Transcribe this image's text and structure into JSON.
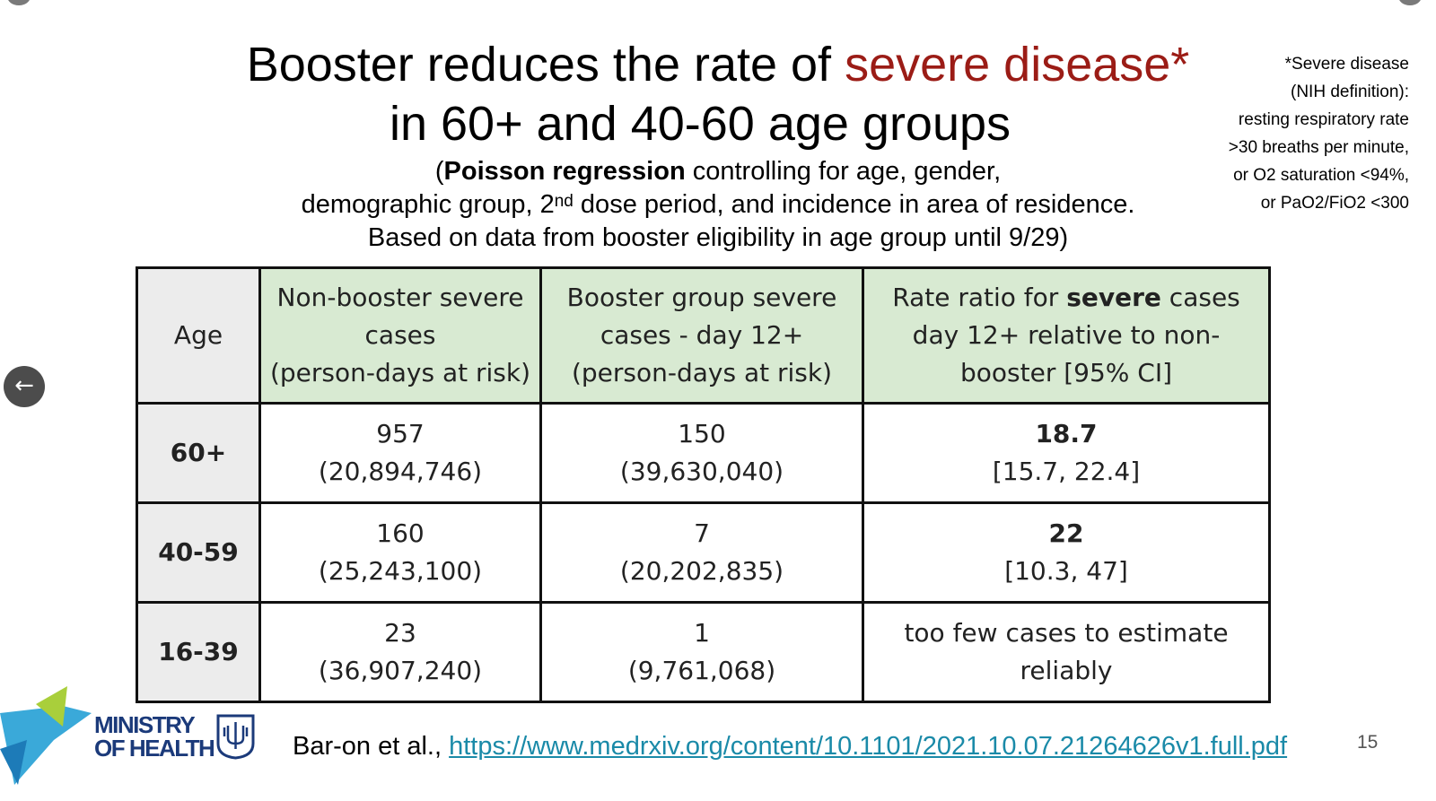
{
  "title": {
    "line1_prefix": "Booster reduces the rate of ",
    "line1_highlight": "severe disease*",
    "line2": "in 60+ and 40-60 age groups",
    "highlight_color": "#9b1c16"
  },
  "subtitle": {
    "open_paren": "(",
    "method_bold": "Poisson regression",
    "line1_rest": " controlling for age, gender,",
    "line2_prefix": "demographic group,  2",
    "line2_sup": "nd",
    "line2_rest": " dose period, and incidence in area of residence.",
    "line3": "Based on data from booster eligibility in age group until 9/29)"
  },
  "footnote": {
    "lines": [
      "*Severe disease",
      "(NIH definition):",
      "resting respiratory rate",
      ">30 breaths per minute,",
      "or O2 saturation <94%,",
      "or PaO2/FiO2 <300"
    ]
  },
  "table": {
    "headers": {
      "age": "Age",
      "nonbooster": [
        "Non-booster severe",
        "cases",
        "(person-days at risk)"
      ],
      "booster": [
        "Booster group severe",
        "cases - day 12+",
        "(person-days at risk)"
      ],
      "ratio_prefix": "Rate ratio for ",
      "ratio_bold": "severe",
      "ratio_rest1": " cases",
      "ratio_line2": "day 12+ relative to non-",
      "ratio_line3": "booster [95% CI]"
    },
    "rows": [
      {
        "age": "60+",
        "nonbooster_cases": "957",
        "nonbooster_days": "(20,894,746)",
        "booster_cases": "150",
        "booster_days": "(39,630,040)",
        "ratio": "18.7",
        "ci": "[15.7, 22.4]"
      },
      {
        "age": "40-59",
        "nonbooster_cases": "160",
        "nonbooster_days": "(25,243,100)",
        "booster_cases": "7",
        "booster_days": "(20,202,835)",
        "ratio": "22",
        "ci": "[10.3, 47]"
      },
      {
        "age": "16-39",
        "nonbooster_cases": "23",
        "nonbooster_days": "(36,907,240)",
        "booster_cases": "1",
        "booster_days": "(9,761,068)",
        "ratio_text1": "too few cases to estimate",
        "ratio_text2": "reliably"
      }
    ]
  },
  "logo": {
    "line1": "MINISTRY",
    "line2": "OF HEALTH"
  },
  "citation": {
    "prefix": "Bar-on et al., ",
    "link": "https://www.medrxiv.org/content/10.1101/2021.10.07.21264626v1.full.pdf"
  },
  "page_number": "15",
  "back_button": {
    "icon": "arrow-left-icon",
    "glyph": "←"
  }
}
